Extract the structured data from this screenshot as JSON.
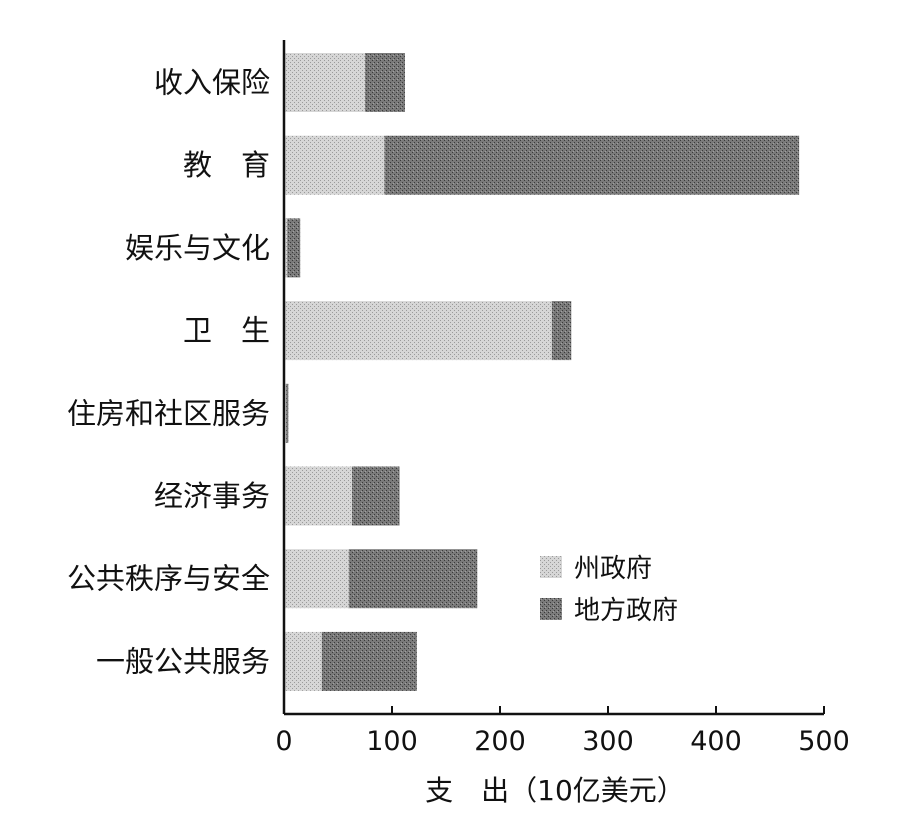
{
  "chart_data": {
    "type": "bar",
    "orientation": "horizontal",
    "stacked": true,
    "categories": [
      "收入保险",
      "教　育",
      "娱乐与文化",
      "卫　生",
      "住房和社区服务",
      "经济事务",
      "公共秩序与安全",
      "一般公共服务"
    ],
    "series": [
      {
        "name": "州政府",
        "color": "#cfcfcf",
        "values": [
          75,
          93,
          3,
          248,
          2,
          63,
          60,
          35
        ]
      },
      {
        "name": "地方政府",
        "color": "#6e6e6e",
        "values": [
          37,
          384,
          12,
          18,
          2,
          44,
          119,
          88
        ]
      }
    ],
    "xlabel": "支　出（10亿美元）",
    "xlim": [
      0,
      500
    ],
    "xticks": [
      0,
      100,
      200,
      300,
      400,
      500
    ],
    "grid": false,
    "legend": "right"
  }
}
